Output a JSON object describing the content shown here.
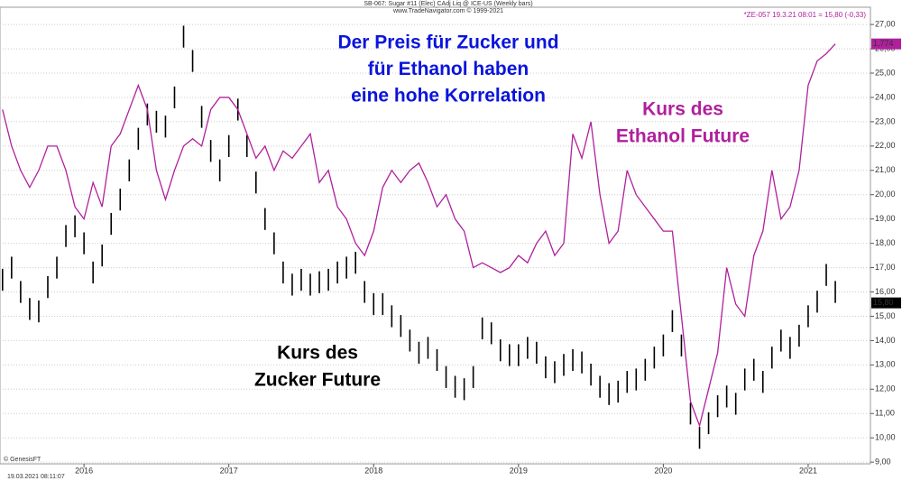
{
  "chart_data": {
    "type": "financial",
    "header": "SB-067: Sugar #11 (Elec) CAdj Liq @ ICE-US (Weekly bars)",
    "source": "www.TradeNavigator.com © 1999-2021",
    "quote": "*ZE-057  19.3.21 08:01 = 15,80 (-0,33)",
    "credit": "© GenesisFT",
    "timestamp": "19.03.2021 08:11:07",
    "annotations": [
      {
        "lines": [
          "Der Preis für Zucker und",
          "für Ethanol haben",
          "eine hohe Korrelation"
        ],
        "color": "#0a14dc"
      },
      {
        "lines": [
          "Kurs des",
          "Ethanol Future"
        ],
        "color": "#b0209c"
      },
      {
        "lines": [
          "Kurs des",
          "Zucker Future"
        ],
        "color": "#000000"
      }
    ],
    "xlim": [
      2015.42,
      2021.43
    ],
    "xticks": [
      2016,
      2017,
      2018,
      2019,
      2020,
      2021
    ],
    "ylim": [
      8.93,
      27.71
    ],
    "yticks": [
      {
        "value": 9,
        "label": "9,00"
      },
      {
        "value": 10,
        "label": "10,00"
      },
      {
        "value": 11,
        "label": "11,00"
      },
      {
        "value": 12,
        "label": "12,00"
      },
      {
        "value": 13,
        "label": "13,00"
      },
      {
        "value": 14,
        "label": "14,00"
      },
      {
        "value": 15,
        "label": "15,00"
      },
      {
        "value": 16,
        "label": "16,00"
      },
      {
        "value": 17,
        "label": "17,00"
      },
      {
        "value": 18,
        "label": "18,00"
      },
      {
        "value": 19,
        "label": "19,00"
      },
      {
        "value": 20,
        "label": "20,00"
      },
      {
        "value": 21,
        "label": "21,00"
      },
      {
        "value": 22,
        "label": "22,00"
      },
      {
        "value": 23,
        "label": "23,00"
      },
      {
        "value": 24,
        "label": "24,00"
      },
      {
        "value": 25,
        "label": "25,00"
      },
      {
        "value": 26,
        "label": "26,00"
      },
      {
        "value": 27,
        "label": "27,00"
      }
    ],
    "grid": true,
    "x": [
      2015.4375,
      2015.5,
      2015.5625,
      2015.625,
      2015.6875,
      2015.75,
      2015.8125,
      2015.875,
      2015.9375,
      2016,
      2016.0625,
      2016.125,
      2016.1875,
      2016.25,
      2016.3125,
      2016.375,
      2016.4375,
      2016.5,
      2016.5625,
      2016.625,
      2016.6875,
      2016.75,
      2016.8125,
      2016.875,
      2016.9375,
      2017,
      2017.0625,
      2017.125,
      2017.1875,
      2017.25,
      2017.3125,
      2017.375,
      2017.4375,
      2017.5,
      2017.5625,
      2017.625,
      2017.6875,
      2017.75,
      2017.8125,
      2017.875,
      2017.9375,
      2018,
      2018.0625,
      2018.125,
      2018.1875,
      2018.25,
      2018.3125,
      2018.375,
      2018.4375,
      2018.5,
      2018.5625,
      2018.625,
      2018.6875,
      2018.75,
      2018.8125,
      2018.875,
      2018.9375,
      2019,
      2019.0625,
      2019.125,
      2019.1875,
      2019.25,
      2019.3125,
      2019.375,
      2019.4375,
      2019.5,
      2019.5625,
      2019.625,
      2019.6875,
      2019.75,
      2019.8125,
      2019.875,
      2019.9375,
      2020,
      2020.0625,
      2020.125,
      2020.1875,
      2020.25,
      2020.3125,
      2020.375,
      2020.4375,
      2020.5,
      2020.5625,
      2020.625,
      2020.6875,
      2020.75,
      2020.8125,
      2020.875,
      2020.9375,
      2021,
      2021.0625,
      2021.125,
      2021.1875
    ],
    "series": [
      {
        "name": "SB-067",
        "kind": "range",
        "color": "#000000",
        "last_label": "15,80",
        "high": [
          16.95,
          17.45,
          16.45,
          15.75,
          15.65,
          16.65,
          17.45,
          18.75,
          19.15,
          18.45,
          17.25,
          17.95,
          19.25,
          20.25,
          21.45,
          22.75,
          23.75,
          23.45,
          23.25,
          24.45,
          26.95,
          25.95,
          23.65,
          22.25,
          21.45,
          22.45,
          23.95,
          22.45,
          20.95,
          19.45,
          18.45,
          17.25,
          16.75,
          16.95,
          16.75,
          16.85,
          16.95,
          17.25,
          17.45,
          17.65,
          16.45,
          15.95,
          15.95,
          15.45,
          15.05,
          14.45,
          13.95,
          14.15,
          13.65,
          12.95,
          12.55,
          12.45,
          12.95,
          14.95,
          14.75,
          14.05,
          13.85,
          13.85,
          14.15,
          13.95,
          13.35,
          13.15,
          13.45,
          13.65,
          13.55,
          13.05,
          12.55,
          12.25,
          12.35,
          12.75,
          12.85,
          13.25,
          13.75,
          14.25,
          15.25,
          14.25,
          11.45,
          10.45,
          11.05,
          11.75,
          12.15,
          11.85,
          12.85,
          13.25,
          12.75,
          13.75,
          14.45,
          14.15,
          14.65,
          15.45,
          16.05,
          17.15,
          16.45
        ],
        "low": [
          16.05,
          16.55,
          15.55,
          14.85,
          14.75,
          15.75,
          16.55,
          17.85,
          18.25,
          17.55,
          16.35,
          17.05,
          18.35,
          19.35,
          20.55,
          21.85,
          22.85,
          22.55,
          22.35,
          23.55,
          26.05,
          25.05,
          22.75,
          21.35,
          20.55,
          21.55,
          23.05,
          21.55,
          20.05,
          18.55,
          17.55,
          16.35,
          15.85,
          16.05,
          15.85,
          15.95,
          16.05,
          16.35,
          16.55,
          16.75,
          15.55,
          15.05,
          15.05,
          14.55,
          14.15,
          13.55,
          13.05,
          13.25,
          12.75,
          12.05,
          11.65,
          11.55,
          12.05,
          14.05,
          13.85,
          13.15,
          12.95,
          12.95,
          13.25,
          13.05,
          12.45,
          12.25,
          12.55,
          12.75,
          12.65,
          12.15,
          11.65,
          11.35,
          11.45,
          11.85,
          11.95,
          12.35,
          12.85,
          13.35,
          14.35,
          13.35,
          10.55,
          9.55,
          10.15,
          10.85,
          11.25,
          10.95,
          11.95,
          12.35,
          11.85,
          12.85,
          13.55,
          13.25,
          13.75,
          14.55,
          15.15,
          16.25,
          15.55
        ]
      },
      {
        "name": "*ZE-057",
        "kind": "line",
        "color": "#b0209c",
        "last_label": "1,774",
        "values": [
          23.5,
          22.0,
          21.0,
          20.3,
          21.0,
          22.0,
          22.0,
          21.0,
          19.5,
          19.0,
          20.5,
          19.5,
          22.0,
          22.5,
          23.5,
          24.5,
          23.5,
          21.0,
          19.8,
          21.0,
          22.0,
          22.3,
          22.0,
          23.5,
          24.0,
          24.0,
          23.5,
          22.5,
          21.5,
          22.0,
          21.0,
          21.8,
          21.5,
          22.0,
          22.5,
          20.5,
          21.0,
          19.5,
          19.0,
          18.0,
          17.5,
          18.5,
          20.3,
          21.0,
          20.5,
          21.0,
          21.3,
          20.5,
          19.5,
          20.0,
          19.0,
          18.5,
          17.0,
          17.2,
          17.0,
          16.8,
          17.0,
          17.5,
          17.2,
          18.0,
          18.5,
          17.5,
          18.0,
          22.5,
          21.5,
          23.0,
          20.0,
          18.0,
          18.5,
          21.0,
          20.0,
          19.5,
          19.0,
          18.5,
          18.5,
          15.0,
          11.5,
          10.5,
          12.0,
          13.5,
          17.0,
          15.5,
          15.0,
          17.5,
          18.5,
          21.0,
          19.0,
          19.5,
          21.0,
          24.5,
          25.5,
          25.8,
          26.2
        ]
      }
    ]
  }
}
